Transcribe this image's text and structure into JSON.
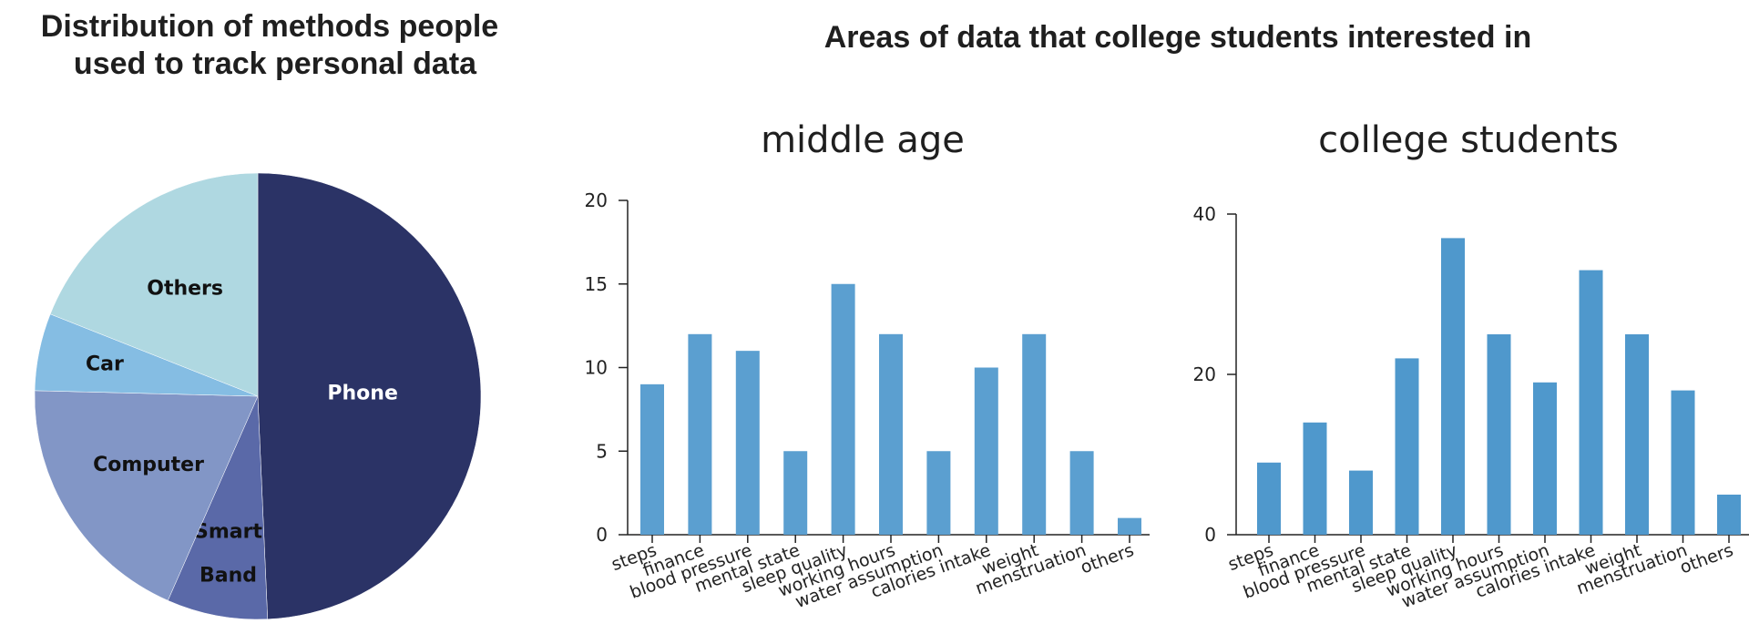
{
  "pie_title_line1": "Distribution of methods people",
  "pie_title_line2": "used to track personal data",
  "main_title": "Areas of data that college students interested in",
  "chart_data": [
    {
      "type": "pie",
      "title": "Distribution of methods people used to track personal data",
      "labels": [
        "Phone",
        "Smart Band",
        "Computer",
        "Car",
        "Others"
      ],
      "values": [
        49.3,
        7.3,
        18.8,
        5.6,
        19.0
      ],
      "colors": [
        "#2b3366",
        "#5a69a8",
        "#8296c6",
        "#85bde3",
        "#afd8e1"
      ]
    },
    {
      "type": "bar",
      "title": "middle age",
      "categories": [
        "steps",
        "finance",
        "blood pressure",
        "mental state",
        "sleep quality",
        "working hours",
        "water assumption",
        "calories intake",
        "weight",
        "menstruation",
        "others"
      ],
      "values": [
        9,
        12,
        11,
        5,
        15,
        12,
        5,
        10,
        12,
        5,
        1
      ],
      "ylim": [
        0,
        20
      ],
      "yticks": [
        "0",
        "5",
        "10",
        "15",
        "20"
      ],
      "color": "#5b9fd0"
    },
    {
      "type": "bar",
      "title": "college students",
      "categories": [
        "steps",
        "finance",
        "blood pressure",
        "mental state",
        "sleep quality",
        "working hours",
        "water assumption",
        "calories intake",
        "weight",
        "menstruation",
        "others"
      ],
      "values": [
        9,
        14,
        8,
        22,
        37,
        25,
        19,
        33,
        25,
        18,
        5
      ],
      "ylim": [
        0,
        40
      ],
      "yticks": [
        "0",
        "20",
        "40"
      ],
      "color": "#4f98cc"
    }
  ]
}
